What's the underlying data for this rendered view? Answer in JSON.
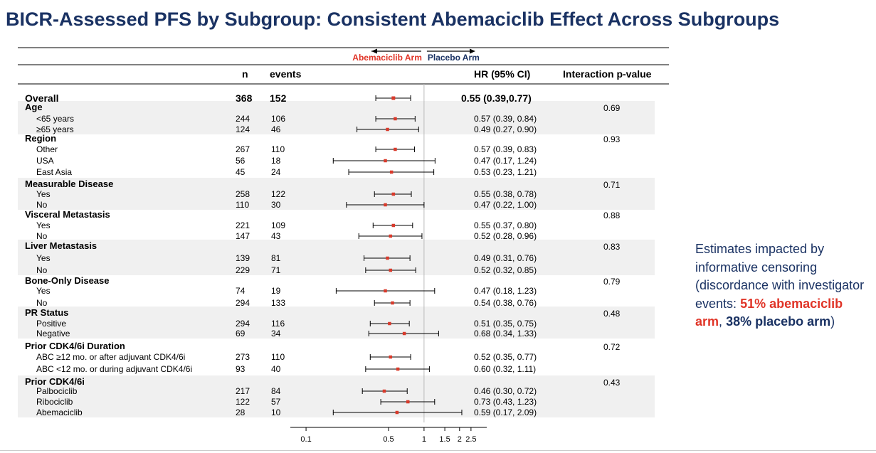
{
  "title": "BICR-Assessed PFS by Subgroup: Consistent Abemaciclib Effect Across Subgroups",
  "colors": {
    "title": "#1a3263",
    "abema": "#e03427",
    "placebo": "#1a3263",
    "marker": "#d93a2b",
    "band": "#f0f0f0"
  },
  "side_note": {
    "line1": "Estimates impacted by informative censoring (discordance with investigator events:",
    "abema": "51% abemaciclib arm",
    "comma": ",",
    "placebo": "38% placebo arm",
    "close": ")"
  },
  "chart_data": {
    "type": "forest",
    "arrows": {
      "left": "Abemaciclib Arm",
      "right": "Placebo Arm"
    },
    "headers": {
      "n": "n",
      "events": "events",
      "hr": "HR (95% CI)",
      "p": "Interaction p-value"
    },
    "x_scale": "log",
    "xlim": [
      0.08,
      3.0
    ],
    "reference_line": 1,
    "ticks": [
      {
        "value": 0.1,
        "label": "0.1"
      },
      {
        "value": 0.5,
        "label": "0.5"
      },
      {
        "value": 1,
        "label": "1"
      },
      {
        "value": 1.5,
        "label": "1.5"
      },
      {
        "value": 2,
        "label": "2"
      },
      {
        "value": 2.5,
        "label": "2.5"
      }
    ],
    "overall": {
      "label": "Overall",
      "n": "368",
      "events": "152",
      "hr": 0.55,
      "lo": 0.39,
      "hi": 0.77,
      "text": "0.55 (0.39,0.77)"
    },
    "groups": [
      {
        "label": "Age",
        "p": "0.69",
        "rows": [
          {
            "label": "<65 years",
            "n": "244",
            "events": "106",
            "hr": 0.57,
            "lo": 0.39,
            "hi": 0.84,
            "text": "0.57 (0.39, 0.84)"
          },
          {
            "label": "≥65 years",
            "n": "124",
            "events": "46",
            "hr": 0.49,
            "lo": 0.27,
            "hi": 0.9,
            "text": "0.49 (0.27, 0.90)"
          }
        ]
      },
      {
        "label": "Region",
        "p": "0.93",
        "rows": [
          {
            "label": "Other",
            "n": "267",
            "events": "110",
            "hr": 0.57,
            "lo": 0.39,
            "hi": 0.83,
            "text": "0.57 (0.39, 0.83)"
          },
          {
            "label": "USA",
            "n": "56",
            "events": "18",
            "hr": 0.47,
            "lo": 0.17,
            "hi": 1.24,
            "text": "0.47 (0.17, 1.24)"
          },
          {
            "label": "East Asia",
            "n": "45",
            "events": "24",
            "hr": 0.53,
            "lo": 0.23,
            "hi": 1.21,
            "text": "0.53 (0.23, 1.21)"
          }
        ]
      },
      {
        "label": "Measurable Disease",
        "p": "0.71",
        "rows": [
          {
            "label": "Yes",
            "n": "258",
            "events": "122",
            "hr": 0.55,
            "lo": 0.38,
            "hi": 0.78,
            "text": "0.55 (0.38, 0.78)"
          },
          {
            "label": "No",
            "n": "110",
            "events": "30",
            "hr": 0.47,
            "lo": 0.22,
            "hi": 1.0,
            "text": "0.47 (0.22, 1.00)"
          }
        ]
      },
      {
        "label": "Visceral Metastasis",
        "p": "0.88",
        "rows": [
          {
            "label": "Yes",
            "n": "221",
            "events": "109",
            "hr": 0.55,
            "lo": 0.37,
            "hi": 0.8,
            "text": "0.55 (0.37, 0.80)"
          },
          {
            "label": "No",
            "n": "147",
            "events": "43",
            "hr": 0.52,
            "lo": 0.28,
            "hi": 0.96,
            "text": "0.52 (0.28, 0.96)"
          }
        ]
      },
      {
        "label": "Liver Metastasis",
        "p": "0.83",
        "rows": [
          {
            "label": "Yes",
            "n": "139",
            "events": "81",
            "hr": 0.49,
            "lo": 0.31,
            "hi": 0.76,
            "text": "0.49 (0.31, 0.76)"
          },
          {
            "label": "No",
            "n": "229",
            "events": "71",
            "hr": 0.52,
            "lo": 0.32,
            "hi": 0.85,
            "text": "0.52 (0.32, 0.85)"
          }
        ]
      },
      {
        "label": "Bone-Only Disease",
        "p": "0.79",
        "rows": [
          {
            "label": "Yes",
            "n": "74",
            "events": "19",
            "hr": 0.47,
            "lo": 0.18,
            "hi": 1.23,
            "text": "0.47 (0.18, 1.23)"
          },
          {
            "label": "No",
            "n": "294",
            "events": "133",
            "hr": 0.54,
            "lo": 0.38,
            "hi": 0.76,
            "text": "0.54 (0.38, 0.76)"
          }
        ]
      },
      {
        "label": "PR Status",
        "p": "0.48",
        "rows": [
          {
            "label": "Positive",
            "n": "294",
            "events": "116",
            "hr": 0.51,
            "lo": 0.35,
            "hi": 0.75,
            "text": "0.51 (0.35, 0.75)"
          },
          {
            "label": "Negative",
            "n": "69",
            "events": "34",
            "hr": 0.68,
            "lo": 0.34,
            "hi": 1.33,
            "text": "0.68 (0.34, 1.33)"
          }
        ]
      },
      {
        "label": "Prior CDK4/6i Duration",
        "p": "0.72",
        "rows": [
          {
            "label": "ABC ≥12 mo. or after adjuvant CDK4/6i",
            "n": "273",
            "events": "110",
            "hr": 0.52,
            "lo": 0.35,
            "hi": 0.77,
            "text": "0.52 (0.35, 0.77)"
          },
          {
            "label": "ABC <12 mo. or during adjuvant CDK4/6i",
            "n": "93",
            "events": "40",
            "hr": 0.6,
            "lo": 0.32,
            "hi": 1.11,
            "text": "0.60 (0.32, 1.11)"
          }
        ]
      },
      {
        "label": "Prior CDK4/6i",
        "p": "0.43",
        "rows": [
          {
            "label": "Palbociclib",
            "n": "217",
            "events": "84",
            "hr": 0.46,
            "lo": 0.3,
            "hi": 0.72,
            "text": "0.46 (0.30, 0.72)"
          },
          {
            "label": "Ribociclib",
            "n": "122",
            "events": "57",
            "hr": 0.73,
            "lo": 0.43,
            "hi": 1.23,
            "text": "0.73 (0.43, 1.23)"
          },
          {
            "label": "Abemaciclib",
            "n": "28",
            "events": "10",
            "hr": 0.59,
            "lo": 0.17,
            "hi": 2.09,
            "text": "0.59 (0.17, 2.09)"
          }
        ]
      }
    ]
  }
}
